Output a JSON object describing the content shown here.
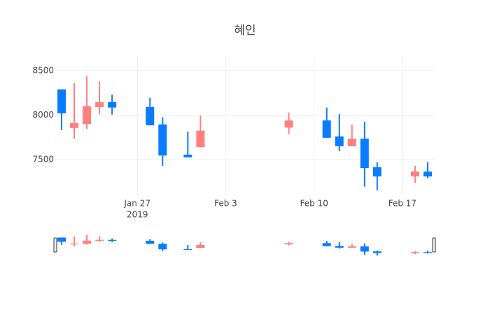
{
  "chart_data": {
    "type": "candlestick",
    "title": "혜인",
    "x": [
      "2019-01-21",
      "2019-01-22",
      "2019-01-23",
      "2019-01-24",
      "2019-01-25",
      "2019-01-28",
      "2019-01-29",
      "2019-01-31",
      "2019-02-01",
      "2019-02-08",
      "2019-02-11",
      "2019-02-12",
      "2019-02-13",
      "2019-02-14",
      "2019-02-15",
      "2019-02-18",
      "2019-02-19"
    ],
    "open": [
      8290,
      7855,
      7900,
      8090,
      8145,
      8090,
      7895,
      7555,
      7640,
      7860,
      7940,
      7760,
      7650,
      7735,
      7415,
      7310,
      7365
    ],
    "high": [
      8290,
      8360,
      8440,
      8380,
      8230,
      8195,
      7975,
      7815,
      7995,
      8030,
      8085,
      8010,
      7895,
      7925,
      7470,
      7430,
      7470
    ],
    "low": [
      7830,
      7735,
      7845,
      8010,
      8005,
      7885,
      7430,
      7525,
      7640,
      7785,
      7745,
      7595,
      7650,
      7195,
      7155,
      7240,
      7290
    ],
    "close": [
      8020,
      7910,
      8100,
      8145,
      8085,
      7885,
      7545,
      7525,
      7825,
      7940,
      7745,
      7650,
      7735,
      7405,
      7310,
      7365,
      7310
    ],
    "increasing_color": "#ff7f7f",
    "decreasing_color": "#0a7cff",
    "xlim": [
      "2019-01-20T12:00:00Z",
      "2019-02-19T12:00:00Z"
    ],
    "xticks": [
      {
        "value": "2019-01-27",
        "label": "Jan 27",
        "sublabel": "2019"
      },
      {
        "value": "2019-02-03",
        "label": "Feb 3"
      },
      {
        "value": "2019-02-10",
        "label": "Feb 10"
      },
      {
        "value": "2019-02-17",
        "label": "Feb 17"
      }
    ],
    "ylim": [
      7090,
      8665
    ],
    "yticks": [
      7500,
      8000,
      8500
    ],
    "grid": true,
    "rangeslider": true
  }
}
